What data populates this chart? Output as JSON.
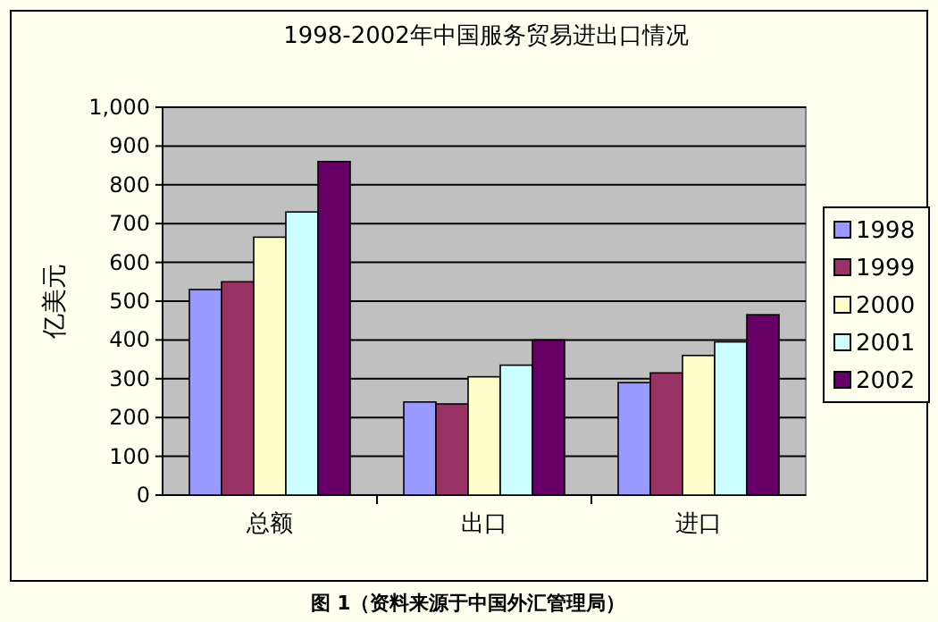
{
  "chart_data": {
    "type": "bar",
    "title": "1998-2002年中国服务贸易进出口情况",
    "ylabel": "亿美元",
    "categories": [
      "总额",
      "出口",
      "进口"
    ],
    "series": [
      {
        "name": "1998",
        "color": "#9999ff",
        "values": [
          530,
          240,
          290
        ]
      },
      {
        "name": "1999",
        "color": "#993366",
        "values": [
          550,
          235,
          315
        ]
      },
      {
        "name": "2000",
        "color": "#ffffcc",
        "values": [
          665,
          305,
          360
        ]
      },
      {
        "name": "2001",
        "color": "#ccffff",
        "values": [
          730,
          335,
          395
        ]
      },
      {
        "name": "2002",
        "color": "#660066",
        "values": [
          860,
          400,
          465
        ]
      }
    ],
    "ylim": [
      0,
      1000
    ],
    "yticks": [
      0,
      100,
      200,
      300,
      400,
      500,
      600,
      700,
      800,
      900,
      {
        "value": 1000,
        "label": "1,000"
      }
    ],
    "grid": "y",
    "legend": "right",
    "annotations": [
      "图 1（资料来源于中国外汇管理局）"
    ]
  }
}
